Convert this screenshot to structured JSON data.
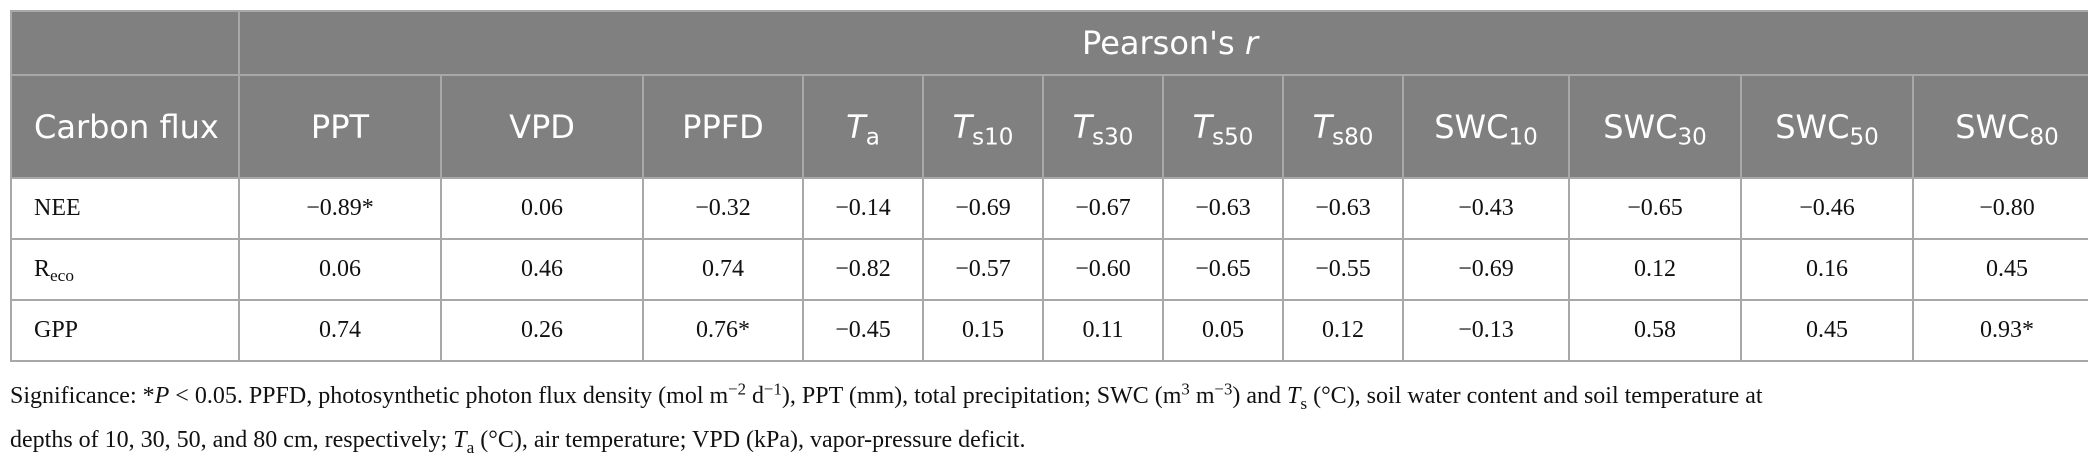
{
  "table": {
    "group_header": "Pearson's r",
    "row_header_label": "Carbon flux",
    "columns": [
      {
        "base": "PPT",
        "italic": false,
        "sub": ""
      },
      {
        "base": "VPD",
        "italic": false,
        "sub": ""
      },
      {
        "base": "PPFD",
        "italic": false,
        "sub": ""
      },
      {
        "base": "T",
        "italic": true,
        "sub": "a"
      },
      {
        "base": "T",
        "italic": true,
        "sub": "s10"
      },
      {
        "base": "T",
        "italic": true,
        "sub": "s30"
      },
      {
        "base": "T",
        "italic": true,
        "sub": "s50"
      },
      {
        "base": "T",
        "italic": true,
        "sub": "s80"
      },
      {
        "base": "SWC",
        "italic": false,
        "sub": "10"
      },
      {
        "base": "SWC",
        "italic": false,
        "sub": "30"
      },
      {
        "base": "SWC",
        "italic": false,
        "sub": "50"
      },
      {
        "base": "SWC",
        "italic": false,
        "sub": "80"
      }
    ],
    "rows": [
      {
        "label": "NEE",
        "sub": "",
        "values": [
          "−0.89*",
          "0.06",
          "−0.32",
          "−0.14",
          "−0.69",
          "−0.67",
          "−0.63",
          "−0.63",
          "−0.43",
          "−0.65",
          "−0.46",
          "−0.80"
        ]
      },
      {
        "label": "R",
        "sub": "eco",
        "values": [
          "0.06",
          "0.46",
          "0.74",
          "−0.82",
          "−0.57",
          "−0.60",
          "−0.65",
          "−0.55",
          "−0.69",
          "0.12",
          "0.16",
          "0.45"
        ]
      },
      {
        "label": "GPP",
        "sub": "",
        "values": [
          "0.74",
          "0.26",
          "0.76*",
          "−0.45",
          "0.15",
          "0.11",
          "0.05",
          "0.12",
          "−0.13",
          "0.58",
          "0.45",
          "0.93*"
        ]
      }
    ]
  },
  "footnote": {
    "line1": "Significance: *P < 0.05. PPFD, photosynthetic photon flux density (mol m−2 d−1), PPT (mm), total precipitation; SWC (m3 m−3) and Ts (°C), soil water content and soil temperature at",
    "line2": "depths of 10, 30, 50, and 80 cm, respectively; Ta (°C), air temperature; VPD (kPa), vapor-pressure deficit."
  }
}
